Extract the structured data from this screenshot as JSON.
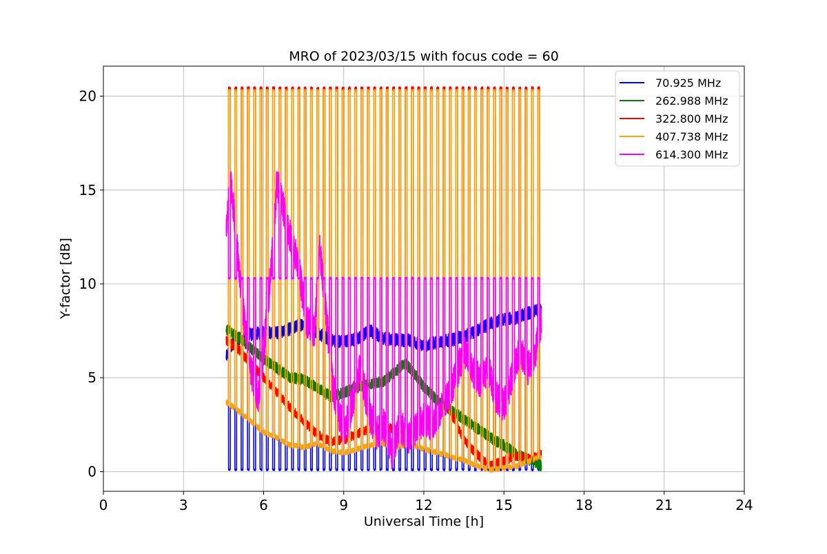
{
  "chart_data": {
    "type": "line",
    "title": "MRO of 2023/03/15 with focus code = 60",
    "xlabel": "Universal Time [h]",
    "ylabel": "Y-factor [dB]",
    "xlim": [
      0,
      24
    ],
    "ylim": [
      -1.05,
      21.6
    ],
    "xticks": [
      0,
      3,
      6,
      9,
      12,
      15,
      18,
      21,
      24
    ],
    "yticks": [
      0,
      5,
      10,
      15,
      20
    ],
    "grid": true,
    "legend_position": "top-right",
    "cal_pulses": {
      "start": 4.72,
      "end": 16.3,
      "count": 50,
      "comment": "periodic calibration spikes every ~0.236 h"
    },
    "series": [
      {
        "name": " 70.925 MHz",
        "color": "#0000ff",
        "baseline": [
          [
            4.6,
            6.1
          ],
          [
            4.9,
            7.0
          ],
          [
            5.5,
            7.3
          ],
          [
            6.0,
            7.4
          ],
          [
            6.5,
            7.4
          ],
          [
            7.0,
            7.6
          ],
          [
            7.5,
            7.9
          ],
          [
            8.0,
            7.4
          ],
          [
            8.5,
            7.0
          ],
          [
            9.0,
            6.9
          ],
          [
            9.5,
            7.1
          ],
          [
            10.0,
            7.5
          ],
          [
            10.5,
            7.1
          ],
          [
            11.0,
            7.0
          ],
          [
            11.5,
            7.0
          ],
          [
            12.0,
            6.7
          ],
          [
            12.5,
            6.9
          ],
          [
            13.0,
            7.0
          ],
          [
            13.5,
            7.2
          ],
          [
            14.0,
            7.5
          ],
          [
            14.5,
            7.9
          ],
          [
            15.0,
            8.1
          ],
          [
            15.5,
            8.2
          ],
          [
            16.0,
            8.5
          ],
          [
            16.4,
            8.6
          ]
        ],
        "noise": 0.35,
        "pulse": {
          "type": "dip",
          "level": 0.1
        }
      },
      {
        "name": "262.988 MHz",
        "color": "#008000",
        "baseline": [
          [
            4.6,
            7.6
          ],
          [
            5.0,
            7.2
          ],
          [
            5.5,
            6.6
          ],
          [
            6.0,
            6.0
          ],
          [
            6.5,
            5.5
          ],
          [
            7.0,
            5.0
          ],
          [
            7.5,
            4.9
          ],
          [
            8.0,
            4.5
          ],
          [
            8.5,
            4.0
          ],
          [
            9.0,
            4.2
          ],
          [
            9.5,
            4.5
          ],
          [
            10.0,
            4.7
          ],
          [
            10.5,
            4.8
          ],
          [
            11.0,
            5.4
          ],
          [
            11.3,
            5.8
          ],
          [
            11.6,
            5.3
          ],
          [
            12.0,
            4.5
          ],
          [
            12.5,
            3.8
          ],
          [
            13.0,
            3.3
          ],
          [
            13.5,
            2.8
          ],
          [
            14.0,
            2.3
          ],
          [
            14.5,
            1.8
          ],
          [
            15.0,
            1.4
          ],
          [
            15.5,
            0.9
          ],
          [
            16.0,
            0.6
          ],
          [
            16.4,
            0.3
          ]
        ],
        "noise": 0.3,
        "pulse": {
          "type": "none",
          "level": 0
        }
      },
      {
        "name": "322.800 MHz",
        "color": "#ff0000",
        "baseline": [
          [
            4.6,
            7.0
          ],
          [
            5.0,
            6.6
          ],
          [
            5.5,
            5.8
          ],
          [
            6.0,
            5.0
          ],
          [
            6.5,
            4.2
          ],
          [
            7.0,
            3.4
          ],
          [
            7.5,
            2.7
          ],
          [
            8.0,
            2.0
          ],
          [
            8.5,
            1.6
          ],
          [
            9.0,
            1.7
          ],
          [
            9.5,
            2.0
          ],
          [
            10.0,
            2.3
          ],
          [
            10.5,
            2.4
          ],
          [
            11.0,
            2.2
          ],
          [
            11.5,
            1.9
          ],
          [
            12.0,
            2.3
          ],
          [
            12.5,
            3.0
          ],
          [
            12.8,
            3.6
          ],
          [
            13.2,
            2.6
          ],
          [
            13.5,
            1.7
          ],
          [
            14.0,
            0.9
          ],
          [
            14.5,
            0.3
          ],
          [
            15.0,
            0.6
          ],
          [
            15.5,
            0.8
          ],
          [
            16.0,
            0.7
          ],
          [
            16.4,
            0.9
          ]
        ],
        "noise": 0.25,
        "pulse": {
          "type": "spike",
          "level": 20.45
        }
      },
      {
        "name": "407.738 MHz",
        "color": "#ffa500",
        "baseline": [
          [
            4.6,
            3.7
          ],
          [
            5.0,
            3.3
          ],
          [
            5.5,
            2.7
          ],
          [
            6.0,
            2.1
          ],
          [
            6.5,
            1.8
          ],
          [
            7.0,
            1.4
          ],
          [
            7.5,
            1.3
          ],
          [
            8.0,
            1.5
          ],
          [
            8.5,
            1.1
          ],
          [
            9.0,
            1.0
          ],
          [
            9.5,
            1.2
          ],
          [
            10.0,
            1.4
          ],
          [
            10.5,
            1.5
          ],
          [
            11.0,
            1.3
          ],
          [
            11.5,
            1.5
          ],
          [
            12.0,
            1.2
          ],
          [
            12.5,
            1.0
          ],
          [
            13.0,
            0.8
          ],
          [
            13.5,
            0.6
          ],
          [
            14.0,
            0.3
          ],
          [
            14.5,
            0.1
          ],
          [
            15.0,
            0.2
          ],
          [
            15.5,
            0.3
          ],
          [
            16.0,
            0.6
          ],
          [
            16.4,
            0.8
          ]
        ],
        "noise": 0.15,
        "pulse": {
          "type": "spike",
          "level": 20.3
        }
      },
      {
        "name": "614.300 MHz",
        "color": "#ff00ff",
        "baseline": [
          [
            4.6,
            12.5
          ],
          [
            4.75,
            15.8
          ],
          [
            5.0,
            12.0
          ],
          [
            5.2,
            9.0
          ],
          [
            5.5,
            5.5
          ],
          [
            5.8,
            4.0
          ],
          [
            6.0,
            6.5
          ],
          [
            6.3,
            11.0
          ],
          [
            6.5,
            15.5
          ],
          [
            6.7,
            14.2
          ],
          [
            7.0,
            12.5
          ],
          [
            7.3,
            11.0
          ],
          [
            7.6,
            8.0
          ],
          [
            7.9,
            7.5
          ],
          [
            8.1,
            12.0
          ],
          [
            8.3,
            9.0
          ],
          [
            8.6,
            4.5
          ],
          [
            9.0,
            2.0
          ],
          [
            9.3,
            3.5
          ],
          [
            9.6,
            5.5
          ],
          [
            9.9,
            3.5
          ],
          [
            10.2,
            2.0
          ],
          [
            10.5,
            2.5
          ],
          [
            10.8,
            1.0
          ],
          [
            11.1,
            2.5
          ],
          [
            11.4,
            1.8
          ],
          [
            11.7,
            2.2
          ],
          [
            12.0,
            2.8
          ],
          [
            12.3,
            2.5
          ],
          [
            12.6,
            3.2
          ],
          [
            12.9,
            4.0
          ],
          [
            13.2,
            5.0
          ],
          [
            13.5,
            6.5
          ],
          [
            13.8,
            5.5
          ],
          [
            14.1,
            4.8
          ],
          [
            14.4,
            5.5
          ],
          [
            14.7,
            4.0
          ],
          [
            15.0,
            3.5
          ],
          [
            15.3,
            5.0
          ],
          [
            15.6,
            6.5
          ],
          [
            15.9,
            5.5
          ],
          [
            16.2,
            6.5
          ],
          [
            16.4,
            8.0
          ]
        ],
        "noise": 0.9,
        "pulse": {
          "type": "spike",
          "level": 10.3
        }
      }
    ]
  }
}
